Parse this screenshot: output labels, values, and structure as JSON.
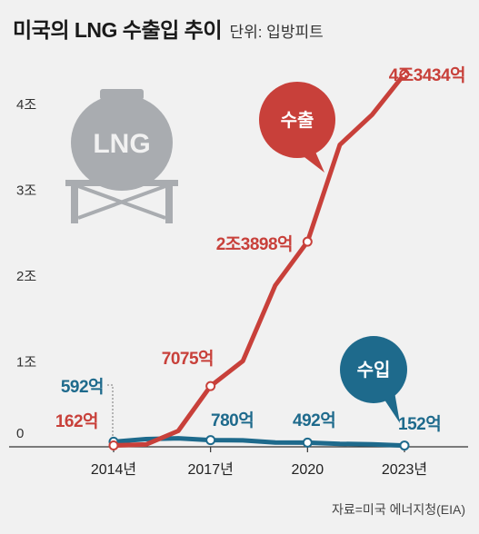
{
  "header": {
    "title": "미국의 LNG 수출입 추이",
    "unit": "단위: 입방피트"
  },
  "source": "자료=미국 에너지청(EIA)",
  "tank_label": "LNG",
  "colors": {
    "export": "#c8403a",
    "import": "#1e6a8c",
    "tank": "#a9acb0",
    "axis": "#333333"
  },
  "chart_data": {
    "type": "line",
    "title": "미국의 LNG 수출입 추이",
    "unit": "단위: 입방피트",
    "x": [
      2014,
      2015,
      2016,
      2017,
      2018,
      2019,
      2020,
      2021,
      2022,
      2023
    ],
    "xticks": [
      {
        "value": 2014,
        "label": "2014년"
      },
      {
        "value": 2017,
        "label": "2017년"
      },
      {
        "value": 2020,
        "label": "2020"
      },
      {
        "value": 2023,
        "label": "2023년"
      }
    ],
    "yticks": [
      {
        "value": 0,
        "label": "0"
      },
      {
        "value": 10000,
        "label": "1조"
      },
      {
        "value": 20000,
        "label": "2조"
      },
      {
        "value": 30000,
        "label": "3조"
      },
      {
        "value": 40000,
        "label": "4조"
      }
    ],
    "ylim": [
      0,
      44000
    ],
    "xlim": [
      2014,
      2023
    ],
    "grid": false,
    "series": [
      {
        "name": "수출",
        "color": "#c8403a",
        "values": [
          162,
          280,
          1850,
          7075,
          10000,
          18800,
          23898,
          35200,
          38700,
          43434
        ],
        "markers": [
          0,
          3,
          6,
          9
        ],
        "labels": [
          {
            "index": 0,
            "text": "162억"
          },
          {
            "index": 3,
            "text": "7075억"
          },
          {
            "index": 6,
            "text": "2조3898억"
          },
          {
            "index": 9,
            "text": "4조3434억"
          }
        ]
      },
      {
        "name": "수입",
        "color": "#1e6a8c",
        "values": [
          592,
          900,
          1000,
          780,
          750,
          500,
          492,
          350,
          300,
          152
        ],
        "markers": [
          0,
          3,
          6,
          9
        ],
        "labels": [
          {
            "index": 0,
            "text": "592억"
          },
          {
            "index": 3,
            "text": "780억"
          },
          {
            "index": 6,
            "text": "492억"
          },
          {
            "index": 9,
            "text": "152억"
          }
        ]
      }
    ]
  }
}
